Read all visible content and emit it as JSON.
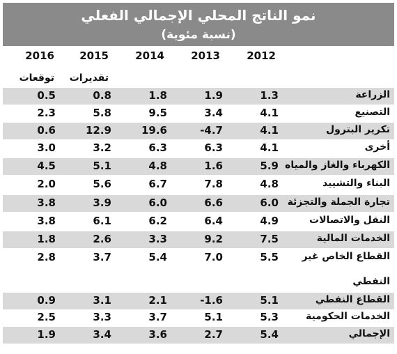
{
  "title": "نمو الناتج المحلي الإجمالي الفعلي",
  "subtitle": "(نسبة مئوية)",
  "years": [
    "2016",
    "2015",
    "2014",
    "2013",
    "2012"
  ],
  "sub_labels": {
    "y2016": "توقعات",
    "y2015": "تقديرات"
  },
  "rows": [
    {
      "label": "الزراعة",
      "v2016": "0.5",
      "v2015": "0.8",
      "v2014": "1.8",
      "v2013": "1.9",
      "v2012": "1.3"
    },
    {
      "label": "التصنيع",
      "v2016": "2.3",
      "v2015": "5.8",
      "v2014": "9.5",
      "v2013": "3.4",
      "v2012": "4.1"
    },
    {
      "label": "تكرير البترول",
      "v2016": "0.6",
      "v2015": "12.9",
      "v2014": "19.6",
      "v2013": "-4.7",
      "v2012": "4.1"
    },
    {
      "label": "أخرى",
      "v2016": "3.0",
      "v2015": "3.2",
      "v2014": "6.3",
      "v2013": "6.3",
      "v2012": "4.1"
    },
    {
      "label": "الكهرباء والغاز والمياه",
      "v2016": "4.5",
      "v2015": "5.1",
      "v2014": "4.8",
      "v2013": "1.6",
      "v2012": "5.9"
    },
    {
      "label": "البناء والتشييد",
      "v2016": "2.0",
      "v2015": "5.6",
      "v2014": "6.7",
      "v2013": "7.8",
      "v2012": "4.8"
    },
    {
      "label": "تجارة الجملة والتجزئة",
      "v2016": "3.8",
      "v2015": "3.9",
      "v2014": "6.0",
      "v2013": "6.6",
      "v2012": "6.0"
    },
    {
      "label": "النقل والاتصالات",
      "v2016": "3.8",
      "v2015": "6.1",
      "v2014": "6.2",
      "v2013": "6.4",
      "v2012": "4.9"
    },
    {
      "label": "الخدمات المالية",
      "v2016": "1.8",
      "v2015": "2.6",
      "v2014": "3.3",
      "v2013": "9.2",
      "v2012": "7.5"
    },
    {
      "label": "القطاع الخاص غير",
      "v2016": "2.8",
      "v2015": "3.7",
      "v2014": "5.4",
      "v2013": "7.0",
      "v2012": "5.5"
    },
    {
      "label": "القطاع النفطي",
      "v2016": "0.9",
      "v2015": "3.1",
      "v2014": "2.1",
      "v2013": "-1.6",
      "v2012": "5.1"
    },
    {
      "label": "الخدمات الحكومية",
      "v2016": "2.5",
      "v2015": "3.3",
      "v2014": "3.7",
      "v2013": "5.1",
      "v2012": "5.3"
    },
    {
      "label": "الإجمالي",
      "v2016": "1.9",
      "v2015": "3.4",
      "v2014": "3.6",
      "v2013": "2.7",
      "v2012": "5.4"
    }
  ],
  "continuation_label": "النفطي",
  "colors": {
    "header_bg": "#8a8a8a",
    "row_shade": "#d9d9d9"
  }
}
